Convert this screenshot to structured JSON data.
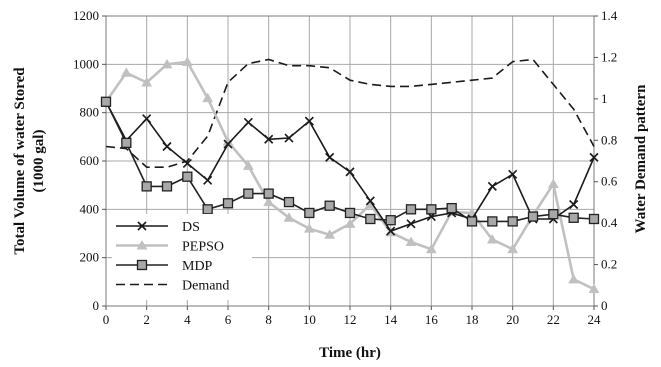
{
  "chart_data": {
    "type": "line",
    "xlabel": "Time (hr)",
    "ylabel_left": "Total Volume of  water Stored (1000 gal)",
    "ylabel_left_lines": [
      "Total Volume of  water Stored",
      "(1000 gal)"
    ],
    "ylabel_right": "Water Demand pattern",
    "x_ticks": [
      "0",
      "2",
      "4",
      "6",
      "8",
      "10",
      "12",
      "14",
      "16",
      "18",
      "20",
      "22",
      "24"
    ],
    "x_tick_values": [
      0,
      2,
      4,
      6,
      8,
      10,
      12,
      14,
      16,
      18,
      20,
      22,
      24
    ],
    "y_left_ticks": [
      "0",
      "200",
      "400",
      "600",
      "800",
      "1000",
      "1200"
    ],
    "y_left_tick_values": [
      0,
      200,
      400,
      600,
      800,
      1000,
      1200
    ],
    "y_right_ticks": [
      "0",
      "0.2",
      "0.4",
      "0.6",
      "0.8",
      "1",
      "1.2",
      "1.4"
    ],
    "y_right_tick_values": [
      0,
      0.2,
      0.4,
      0.6,
      0.8,
      1,
      1.2,
      1.4
    ],
    "xlim": [
      0,
      24
    ],
    "ylim_left": [
      0,
      1200
    ],
    "ylim_right": [
      0,
      1.4
    ],
    "grid": true,
    "legend_position": "bottom-left",
    "series": [
      {
        "name": "DS",
        "axis": "left",
        "marker": "x",
        "color": "#1a1a1a",
        "x": [
          0,
          1,
          2,
          3,
          4,
          5,
          6,
          7,
          8,
          9,
          10,
          11,
          12,
          13,
          14,
          15,
          16,
          17,
          18,
          19,
          20,
          21,
          22,
          23,
          24
        ],
        "y": [
          845,
          685,
          775,
          660,
          590,
          520,
          670,
          760,
          690,
          695,
          765,
          615,
          555,
          435,
          310,
          340,
          370,
          385,
          360,
          495,
          545,
          360,
          360,
          420,
          615
        ]
      },
      {
        "name": "PEPSO",
        "axis": "left",
        "marker": "triangle",
        "color": "#c0c0c0",
        "x": [
          0,
          1,
          2,
          3,
          4,
          5,
          6,
          7,
          8,
          9,
          10,
          11,
          12,
          13,
          14,
          15,
          16,
          17,
          18,
          19,
          20,
          21,
          22,
          23,
          24
        ],
        "y": [
          845,
          965,
          925,
          1000,
          1010,
          860,
          680,
          580,
          430,
          365,
          320,
          295,
          340,
          420,
          305,
          265,
          235,
          390,
          385,
          275,
          235,
          375,
          505,
          110,
          70
        ]
      },
      {
        "name": "MDP",
        "axis": "left",
        "marker": "square",
        "color": "#222222",
        "x": [
          0,
          1,
          2,
          3,
          4,
          5,
          6,
          7,
          8,
          9,
          10,
          11,
          12,
          13,
          14,
          15,
          16,
          17,
          18,
          19,
          20,
          21,
          22,
          23,
          24
        ],
        "y": [
          845,
          675,
          495,
          495,
          535,
          400,
          425,
          465,
          465,
          430,
          385,
          415,
          385,
          360,
          355,
          400,
          400,
          405,
          350,
          350,
          350,
          370,
          380,
          365,
          360
        ]
      },
      {
        "name": "Demand",
        "axis": "right",
        "marker": "none",
        "dashed": true,
        "color": "#1a1a1a",
        "x": [
          0,
          1,
          2,
          3,
          4,
          5,
          6,
          7,
          8,
          9,
          10,
          11,
          12,
          13,
          14,
          15,
          16,
          17,
          18,
          19,
          20,
          21,
          22,
          23,
          24
        ],
        "y": [
          0.77,
          0.76,
          0.67,
          0.67,
          0.7,
          0.82,
          1.08,
          1.17,
          1.19,
          1.16,
          1.16,
          1.15,
          1.09,
          1.07,
          1.06,
          1.06,
          1.07,
          1.08,
          1.09,
          1.1,
          1.18,
          1.19,
          1.07,
          0.95,
          0.77
        ]
      }
    ]
  }
}
